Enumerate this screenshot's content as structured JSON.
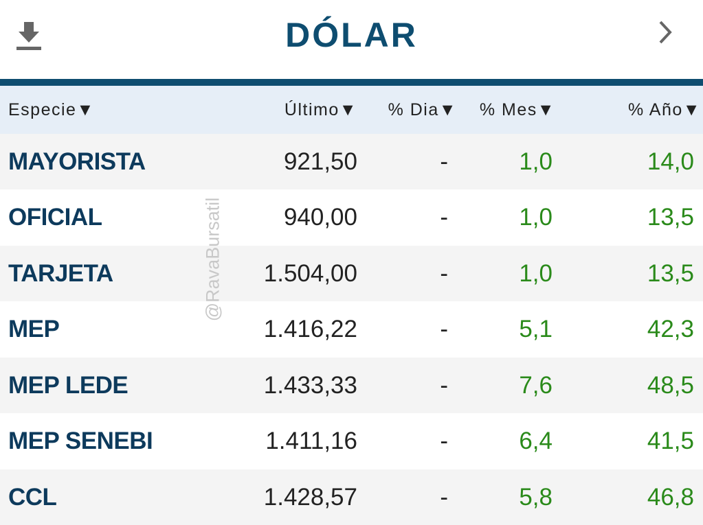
{
  "header": {
    "title": "DÓLAR"
  },
  "watermark": "@RavaBursatil",
  "table": {
    "headers": [
      "Especie▼",
      "Último▼",
      "% Dia▼",
      "% Mes▼",
      "% Año▼"
    ],
    "rows": [
      [
        "MAYORISTA",
        "921,50",
        "-",
        "1,0",
        "14,0"
      ],
      [
        "OFICIAL",
        "940,00",
        "-",
        "1,0",
        "13,5"
      ],
      [
        "TARJETA",
        "1.504,00",
        "-",
        "1,0",
        "13,5"
      ],
      [
        "MEP",
        "1.416,22",
        "-",
        "5,1",
        "42,3"
      ],
      [
        "MEP LEDE",
        "1.433,33",
        "-",
        "7,6",
        "48,5"
      ],
      [
        "MEP SENEBI",
        "1.411,16",
        "-",
        "6,4",
        "41,5"
      ],
      [
        "CCL",
        "1.428,57",
        "-",
        "5,8",
        "46,8"
      ]
    ]
  }
}
